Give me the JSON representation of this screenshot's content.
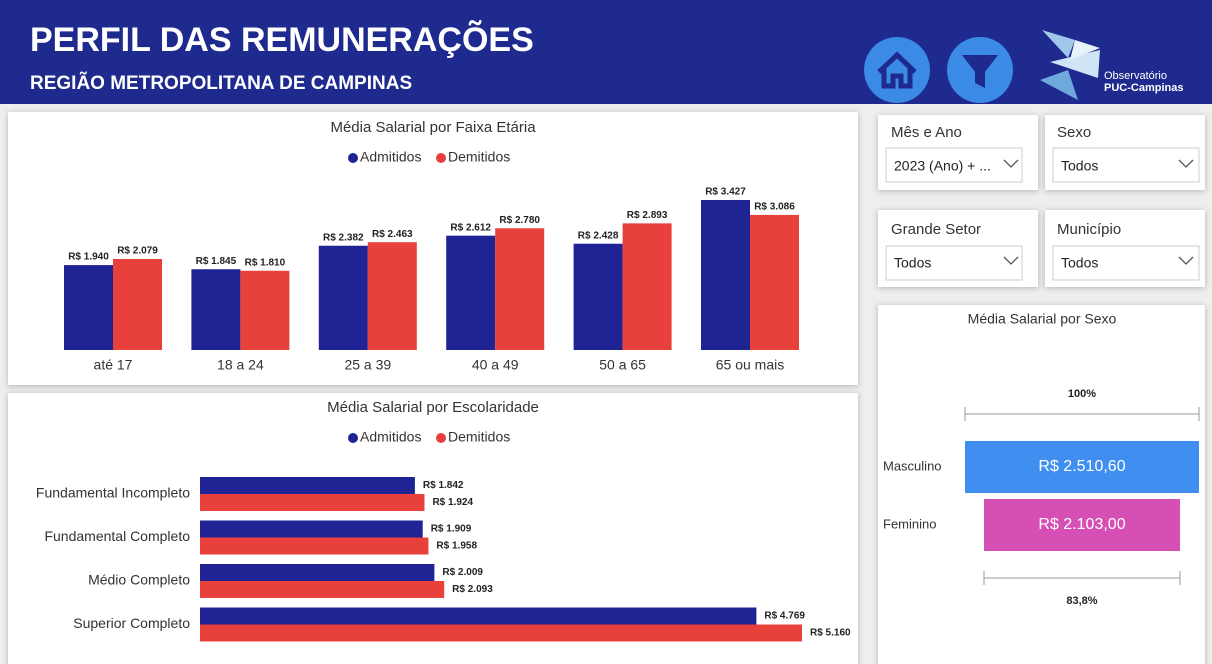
{
  "header": {
    "title": "PERFIL DAS REMUNERAÇÕES",
    "subtitle": "REGIÃO METROPOLITANA DE CAMPINAS",
    "logo_text": [
      "Observatório",
      "PUC-Campinas"
    ]
  },
  "filters": [
    {
      "label": "Mês e Ano",
      "value": "2023 (Ano) + ..."
    },
    {
      "label": "Sexo",
      "value": "Todos"
    },
    {
      "label": "Grande Setor",
      "value": "Todos"
    },
    {
      "label": "Município",
      "value": "Todos"
    }
  ],
  "chart_data": [
    {
      "type": "bar",
      "title": "Média Salarial por Faixa Etária",
      "categories": [
        "até 17",
        "18 a 24",
        "25 a 39",
        "40 a 49",
        "50 a 65",
        "65 ou mais"
      ],
      "series": [
        {
          "name": "Admitidos",
          "color": "#1f2394",
          "values": [
            1940,
            1845,
            2382,
            2612,
            2428,
            3427
          ],
          "value_labels": [
            "R$ 1.940",
            "R$ 1.845",
            "R$ 2.382",
            "R$ 2.612",
            "R$ 2.428",
            "R$ 3.427"
          ]
        },
        {
          "name": "Demitidos",
          "color": "#e8403a",
          "values": [
            2079,
            1810,
            2463,
            2780,
            2893,
            3086
          ],
          "value_labels": [
            "R$ 2.079",
            "R$ 1.810",
            "R$ 2.463",
            "R$ 2.780",
            "R$ 2.893",
            "R$ 3.086"
          ]
        }
      ]
    },
    {
      "type": "hbar",
      "title": "Média Salarial por Escolaridade",
      "categories": [
        "Fundamental Incompleto",
        "Fundamental Completo",
        "Médio Completo",
        "Superior Completo"
      ],
      "series": [
        {
          "name": "Admitidos",
          "color": "#1f2394",
          "values": [
            1842,
            1909,
            2009,
            4769
          ],
          "value_labels": [
            "R$ 1.842",
            "R$ 1.909",
            "R$ 2.009",
            "R$ 4.769"
          ]
        },
        {
          "name": "Demitidos",
          "color": "#e8403a",
          "values": [
            1924,
            1958,
            2093,
            5160
          ],
          "value_labels": [
            "R$ 1.924",
            "R$ 1.958",
            "R$ 2.093",
            "R$ 5.160"
          ]
        }
      ]
    },
    {
      "type": "funnel",
      "title": "Média Salarial por Sexo",
      "categories": [
        "Masculino",
        "Feminino"
      ],
      "values": [
        2510.6,
        2103
      ],
      "value_labels": [
        "R$ 2.510,60",
        "R$ 2.103,00"
      ],
      "colors": [
        "#3f8ef0",
        "#d64fb5"
      ],
      "annotations": [
        "100%",
        "83,8%"
      ]
    }
  ]
}
